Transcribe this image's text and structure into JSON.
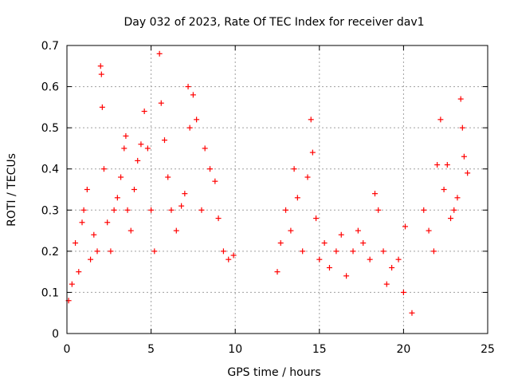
{
  "chart_data": {
    "type": "scatter",
    "title": "Day 032 of 2023, Rate Of TEC Index for receiver dav1",
    "xlabel": "GPS time / hours",
    "ylabel": "ROTI / TECUs",
    "xlim": [
      0,
      25
    ],
    "ylim": [
      0,
      0.7
    ],
    "xticks": [
      0,
      5,
      10,
      15,
      20,
      25
    ],
    "yticks": [
      0,
      0.1,
      0.2,
      0.3,
      0.4,
      0.5,
      0.6,
      0.7
    ],
    "xtick_labels": [
      "0",
      "5",
      "10",
      "15",
      "20",
      "25"
    ],
    "ytick_labels": [
      "0",
      "0.1",
      "0.2",
      "0.3",
      "0.4",
      "0.5",
      "0.6",
      "0.7"
    ],
    "grid": true,
    "marker": "plus",
    "marker_color": "#ff0000",
    "data_gaps_hours": [
      [
        10.1,
        12.3
      ]
    ],
    "series": [
      {
        "x": [
          0.1,
          0.3,
          0.5,
          0.7,
          0.9,
          1.0,
          1.2,
          1.4,
          1.6,
          1.8,
          2.0,
          2.05,
          2.1,
          2.2,
          2.4,
          2.6,
          2.8,
          3.0,
          3.2,
          3.4,
          3.5,
          3.6,
          3.8,
          4.0,
          4.2,
          4.4,
          4.6,
          4.8,
          5.0,
          5.2,
          5.5,
          5.6,
          5.8,
          6.0,
          6.2,
          6.5,
          6.8,
          7.0,
          7.2,
          7.3,
          7.5,
          7.7,
          8.0,
          8.2,
          8.5,
          8.8,
          9.0,
          9.3,
          9.6,
          9.9,
          12.5,
          12.7,
          13.0,
          13.3,
          13.5,
          13.7,
          14.0,
          14.3,
          14.5,
          14.6,
          14.8,
          15.0,
          15.3,
          15.6,
          16.0,
          16.3,
          16.6,
          17.0,
          17.3,
          17.6,
          18.0,
          18.3,
          18.5,
          18.8,
          19.0,
          19.3,
          19.7,
          20.0,
          20.1,
          20.5,
          21.2,
          21.5,
          21.8,
          22.0,
          22.2,
          22.4,
          22.6,
          22.8,
          23.0,
          23.2,
          23.4,
          23.5,
          23.6,
          23.8
        ],
        "y": [
          0.08,
          0.12,
          0.22,
          0.15,
          0.27,
          0.3,
          0.35,
          0.18,
          0.24,
          0.2,
          0.65,
          0.63,
          0.55,
          0.4,
          0.27,
          0.2,
          0.3,
          0.33,
          0.38,
          0.45,
          0.48,
          0.3,
          0.25,
          0.35,
          0.42,
          0.46,
          0.54,
          0.45,
          0.3,
          0.2,
          0.68,
          0.56,
          0.47,
          0.38,
          0.3,
          0.25,
          0.31,
          0.34,
          0.6,
          0.5,
          0.58,
          0.52,
          0.3,
          0.45,
          0.4,
          0.37,
          0.28,
          0.2,
          0.18,
          0.19,
          0.15,
          0.22,
          0.3,
          0.25,
          0.4,
          0.33,
          0.2,
          0.38,
          0.52,
          0.44,
          0.28,
          0.18,
          0.22,
          0.16,
          0.2,
          0.24,
          0.14,
          0.2,
          0.25,
          0.22,
          0.18,
          0.34,
          0.3,
          0.2,
          0.12,
          0.16,
          0.18,
          0.1,
          0.26,
          0.05,
          0.3,
          0.25,
          0.2,
          0.41,
          0.52,
          0.35,
          0.41,
          0.28,
          0.3,
          0.33,
          0.57,
          0.5,
          0.43,
          0.39
        ]
      }
    ]
  }
}
